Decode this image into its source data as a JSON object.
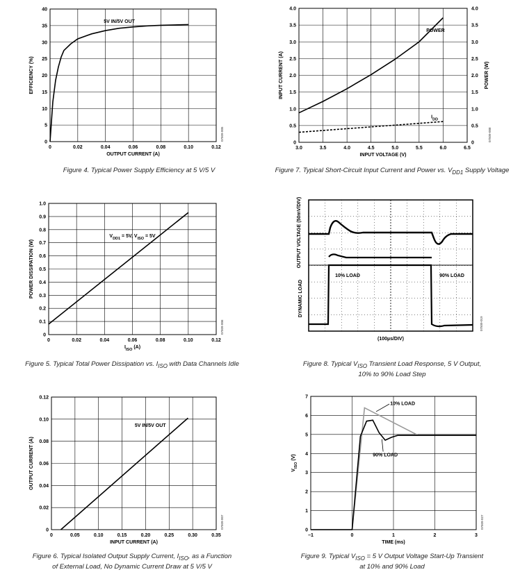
{
  "chart_data": [
    {
      "id": "fig4",
      "type": "line",
      "caption": "Figure 4. Typical Power Supply Efficiency at 5 V/5 V",
      "xlabel": "OUTPUT CURRENT (A)",
      "ylabel": "EFFICIENCY (%)",
      "xlim": [
        0,
        0.12
      ],
      "ylim": [
        0,
        40
      ],
      "xticks": [
        "0",
        "0.02",
        "0.04",
        "0.06",
        "0.08",
        "0.10",
        "0.12"
      ],
      "yticks": [
        "0",
        "5",
        "10",
        "15",
        "20",
        "25",
        "30",
        "35",
        "40"
      ],
      "grid": true,
      "annotation": "5V IN/5V OUT",
      "code": "07509-005",
      "series": [
        {
          "x": [
            0,
            0.001,
            0.002,
            0.004,
            0.006,
            0.008,
            0.01,
            0.015,
            0.02,
            0.03,
            0.04,
            0.05,
            0.06,
            0.07,
            0.08,
            0.09,
            0.1
          ],
          "y": [
            0,
            6,
            12,
            18.5,
            22.5,
            25.5,
            27.5,
            29.5,
            31,
            32.5,
            33.5,
            34.2,
            34.6,
            34.9,
            35.1,
            35.2,
            35.3
          ]
        }
      ]
    },
    {
      "id": "fig7",
      "type": "line",
      "caption": "Figure 7. Typical Short-Circuit Input Current and Power vs. V<sub>DD1</sub> Supply Voltage",
      "xlabel": "INPUT VOLTAGE (V)",
      "ylabel": "INPUT CURRENT (A)",
      "y2label": "POWER (W)",
      "xlim": [
        3.0,
        6.5
      ],
      "ylim": [
        0,
        4.0
      ],
      "xticks": [
        "3.0",
        "3.5",
        "4.0",
        "4.5",
        "5.0",
        "5.5",
        "6.0",
        "6.5"
      ],
      "yticks": [
        "0",
        "0.5",
        "1.0",
        "1.5",
        "2.0",
        "2.5",
        "3.0",
        "3.5",
        "4.0"
      ],
      "grid": true,
      "code": "07509-008",
      "series": [
        {
          "name": "POWER",
          "style": "solid",
          "x": [
            3.0,
            3.5,
            4.0,
            4.5,
            5.0,
            5.5,
            6.0
          ],
          "y": [
            0.88,
            1.22,
            1.6,
            2.02,
            2.48,
            3.0,
            3.72
          ]
        },
        {
          "name": "I<sub>DD</sub>",
          "style": "dashed",
          "x": [
            3.0,
            6.0
          ],
          "y": [
            0.3,
            0.62
          ]
        }
      ]
    },
    {
      "id": "fig5",
      "type": "line",
      "caption": "Figure 5. Typical Total Power Dissipation vs. I<sub>ISO</sub> with Data Channels Idle",
      "xlabel": "I<sub>ISO</sub> (A)",
      "ylabel": "POWER DISSIPATION (W)",
      "xlim": [
        0,
        0.12
      ],
      "ylim": [
        0,
        1.0
      ],
      "xticks": [
        "0",
        "0.02",
        "0.04",
        "0.06",
        "0.08",
        "0.10",
        "0.12"
      ],
      "yticks": [
        "0",
        "0.1",
        "0.2",
        "0.3",
        "0.4",
        "0.5",
        "0.6",
        "0.7",
        "0.8",
        "0.9",
        "1.0"
      ],
      "grid": true,
      "annotation": "V<sub>DD1</sub> = 5V, V<sub>ISO</sub> = 5V",
      "code": "07509-006",
      "series": [
        {
          "x": [
            0,
            0.1
          ],
          "y": [
            0.08,
            0.93
          ]
        }
      ]
    },
    {
      "id": "fig8",
      "type": "line",
      "caption": "Figure 8. Typical V<sub>ISO</sub> Transient Load Response, 5 V Output,<br>10% to 90% Load Step",
      "xlabel": "(100µs/DIV)",
      "ylabel_top": "OUTPUT VOLTAGE (50mV/DIV)",
      "ylabel_bottom": "DYNAMIC LOAD",
      "labels": [
        "10% LOAD",
        "90% LOAD"
      ],
      "grid": true,
      "code": "07509-019"
    },
    {
      "id": "fig6",
      "type": "line",
      "caption": "Figure 6. Typical Isolated Output Supply Current, I<sub>ISO</sub>, as a Function<br>of External Load, No Dynamic Current Draw at 5 V/5 V",
      "xlabel": "INPUT CURRENT (A)",
      "ylabel": "OUTPUT CURRENT (A)",
      "xlim": [
        0,
        0.35
      ],
      "ylim": [
        0,
        0.12
      ],
      "xticks": [
        "0",
        "0.05",
        "0.10",
        "0.15",
        "0.20",
        "0.25",
        "0.30",
        "0.35"
      ],
      "yticks": [
        "0",
        "0.02",
        "0.04",
        "0.06",
        "0.08",
        "0.10",
        "0.12"
      ],
      "grid": true,
      "annotation": "5V IN/5V OUT",
      "code": "07509-007",
      "series": [
        {
          "x": [
            0.02,
            0.29
          ],
          "y": [
            0,
            0.101
          ]
        }
      ]
    },
    {
      "id": "fig9",
      "type": "line",
      "caption": "Figure 9. Typical V<sub>ISO</sub> = 5 V Output Voltage Start-Up Transient<br>at 10% and 90% Load",
      "xlabel": "TIME (ms)",
      "ylabel": "V<sub>ISO</sub> (V)",
      "xlim": [
        -1,
        3
      ],
      "ylim": [
        0,
        7
      ],
      "xticks": [
        "–1",
        "0",
        "1",
        "2",
        "3"
      ],
      "yticks": [
        "0",
        "1",
        "2",
        "3",
        "4",
        "5",
        "6",
        "7"
      ],
      "grid": true,
      "code": "07509-027",
      "series": [
        {
          "name": "10% LOAD",
          "color": "#999999",
          "x": [
            -1,
            0.0,
            0.3,
            1.6,
            3.0
          ],
          "y": [
            0,
            0,
            6.4,
            4.95,
            4.95
          ]
        },
        {
          "name": "90% LOAD",
          "color": "#000000",
          "x": [
            -1,
            0.0,
            0.2,
            0.35,
            0.5,
            0.65,
            0.8,
            0.95,
            1.1,
            1.3,
            3.0
          ],
          "y": [
            0,
            0,
            4.9,
            5.7,
            5.75,
            5.1,
            4.7,
            4.85,
            4.95,
            4.95,
            4.95
          ]
        }
      ]
    }
  ]
}
